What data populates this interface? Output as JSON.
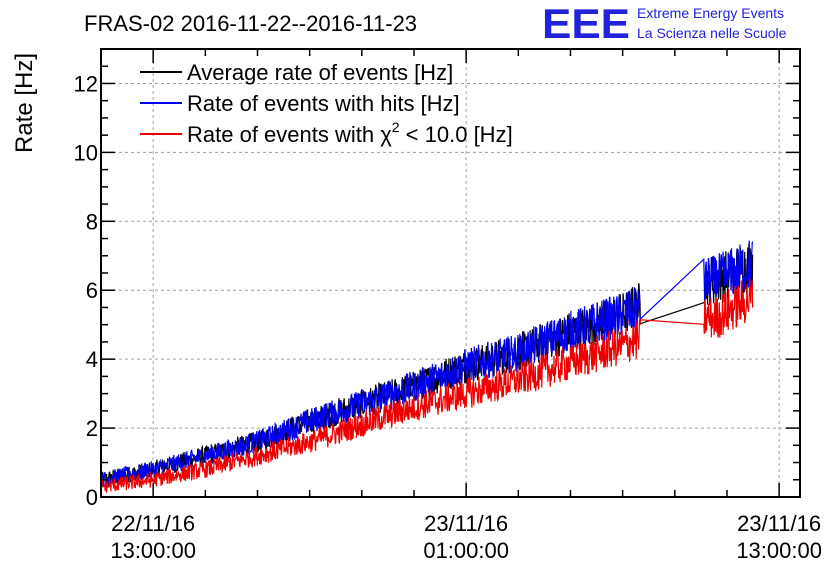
{
  "chart_data": {
    "type": "line",
    "title": "FRAS-02 2016-11-22--2016-11-23",
    "xlabel": "",
    "ylabel": "Rate [Hz]",
    "ylim": [
      0,
      13
    ],
    "yticks": [
      0,
      2,
      4,
      6,
      8,
      10,
      12
    ],
    "xlim_hours": [
      -2.0,
      24.8
    ],
    "xtick_hours": [
      0,
      12,
      24
    ],
    "xtick_labels": [
      {
        "date": "22/11/16",
        "time": "13:00:00"
      },
      {
        "date": "23/11/16",
        "time": "01:00:00"
      },
      {
        "date": "23/11/16",
        "time": "13:00:00"
      }
    ],
    "grid": true,
    "legend_position": "top-left",
    "x_hours_note": "hours relative to 22/11/16 13:00:00",
    "series": [
      {
        "name": "Average rate of events [Hz]",
        "color": "#000000",
        "x": [
          -2.0,
          0,
          2,
          4,
          6,
          8,
          10,
          12,
          14,
          16,
          18,
          18.7,
          21.1,
          21.6,
          22.5,
          23.0
        ],
        "values": [
          0.5,
          0.8,
          1.2,
          1.6,
          2.2,
          2.7,
          3.2,
          3.8,
          4.2,
          4.8,
          5.3,
          5.6,
          6.3,
          6.3,
          6.6,
          6.8
        ]
      },
      {
        "name": "Rate of events with hits [Hz]",
        "color": "#0000ee",
        "x": [
          -2.0,
          0,
          2,
          4,
          6,
          8,
          10,
          12,
          14,
          16,
          18,
          18.7,
          21.1,
          21.6,
          22.5,
          23.0
        ],
        "values": [
          0.5,
          0.8,
          1.2,
          1.6,
          2.2,
          2.7,
          3.2,
          3.8,
          4.2,
          4.8,
          5.3,
          5.5,
          6.2,
          6.3,
          6.6,
          6.8
        ]
      },
      {
        "name": "Rate of events with χ² < 10.0 [Hz]",
        "color": "#ee0000",
        "x": [
          -2.0,
          0,
          2,
          4,
          6,
          8,
          10,
          12,
          14,
          16,
          18,
          18.7,
          21.1,
          21.6,
          22.5,
          23.0
        ],
        "values": [
          0.3,
          0.5,
          0.8,
          1.2,
          1.6,
          2.1,
          2.6,
          3.0,
          3.4,
          3.9,
          4.4,
          4.6,
          5.2,
          5.2,
          5.6,
          5.8
        ]
      }
    ],
    "legend_entries": [
      {
        "prefix": "Average rate of events [Hz]",
        "sup": "",
        "suffix": ""
      },
      {
        "prefix": "Rate of events with hits [Hz]",
        "sup": "",
        "suffix": ""
      },
      {
        "prefix": "Rate of events with χ",
        "sup": "2",
        "suffix": " < 10.0 [Hz]"
      }
    ]
  },
  "logo": {
    "mark": "EEE",
    "line1": "Extreme Energy Events",
    "line2": "La Scienza nelle Scuole",
    "color": "#2222dd"
  }
}
